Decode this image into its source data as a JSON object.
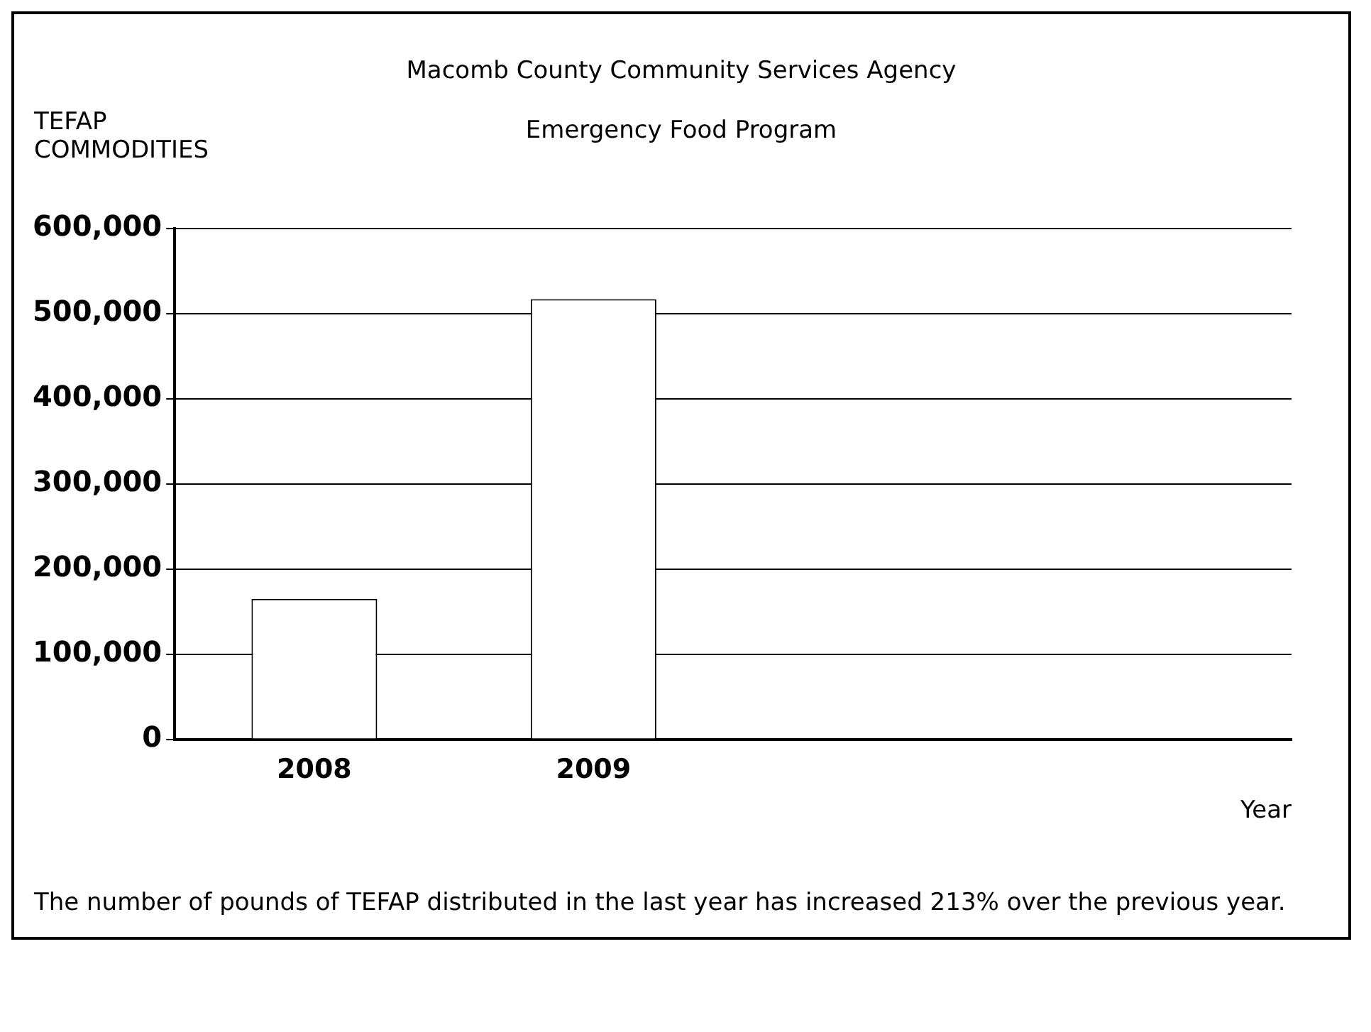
{
  "chart_data": {
    "type": "bar",
    "title": "Macomb County Community Services Agency",
    "subtitle": "Emergency Food Program",
    "ylabel": "TEFAP COMMODITIES",
    "xlabel": "Year",
    "categories": [
      "2008",
      "2009",
      null,
      null
    ],
    "values": [
      165000,
      517000,
      null,
      null
    ],
    "color": "#ffffff",
    "ylim": [
      0,
      600000
    ],
    "yticks": [
      {
        "value": 0,
        "label": "0"
      },
      {
        "value": 100000,
        "label": "100,000"
      },
      {
        "value": 200000,
        "label": "200,000"
      },
      {
        "value": 300000,
        "label": "300,000"
      },
      {
        "value": 400000,
        "label": "400,000"
      },
      {
        "value": 500000,
        "label": "500,000"
      },
      {
        "value": 600000,
        "label": "600,000"
      }
    ],
    "grid": "y",
    "legend": false,
    "annotations": [
      "The number of pounds of TEFAP distributed in the last year has increased 213% over the previous year."
    ]
  }
}
